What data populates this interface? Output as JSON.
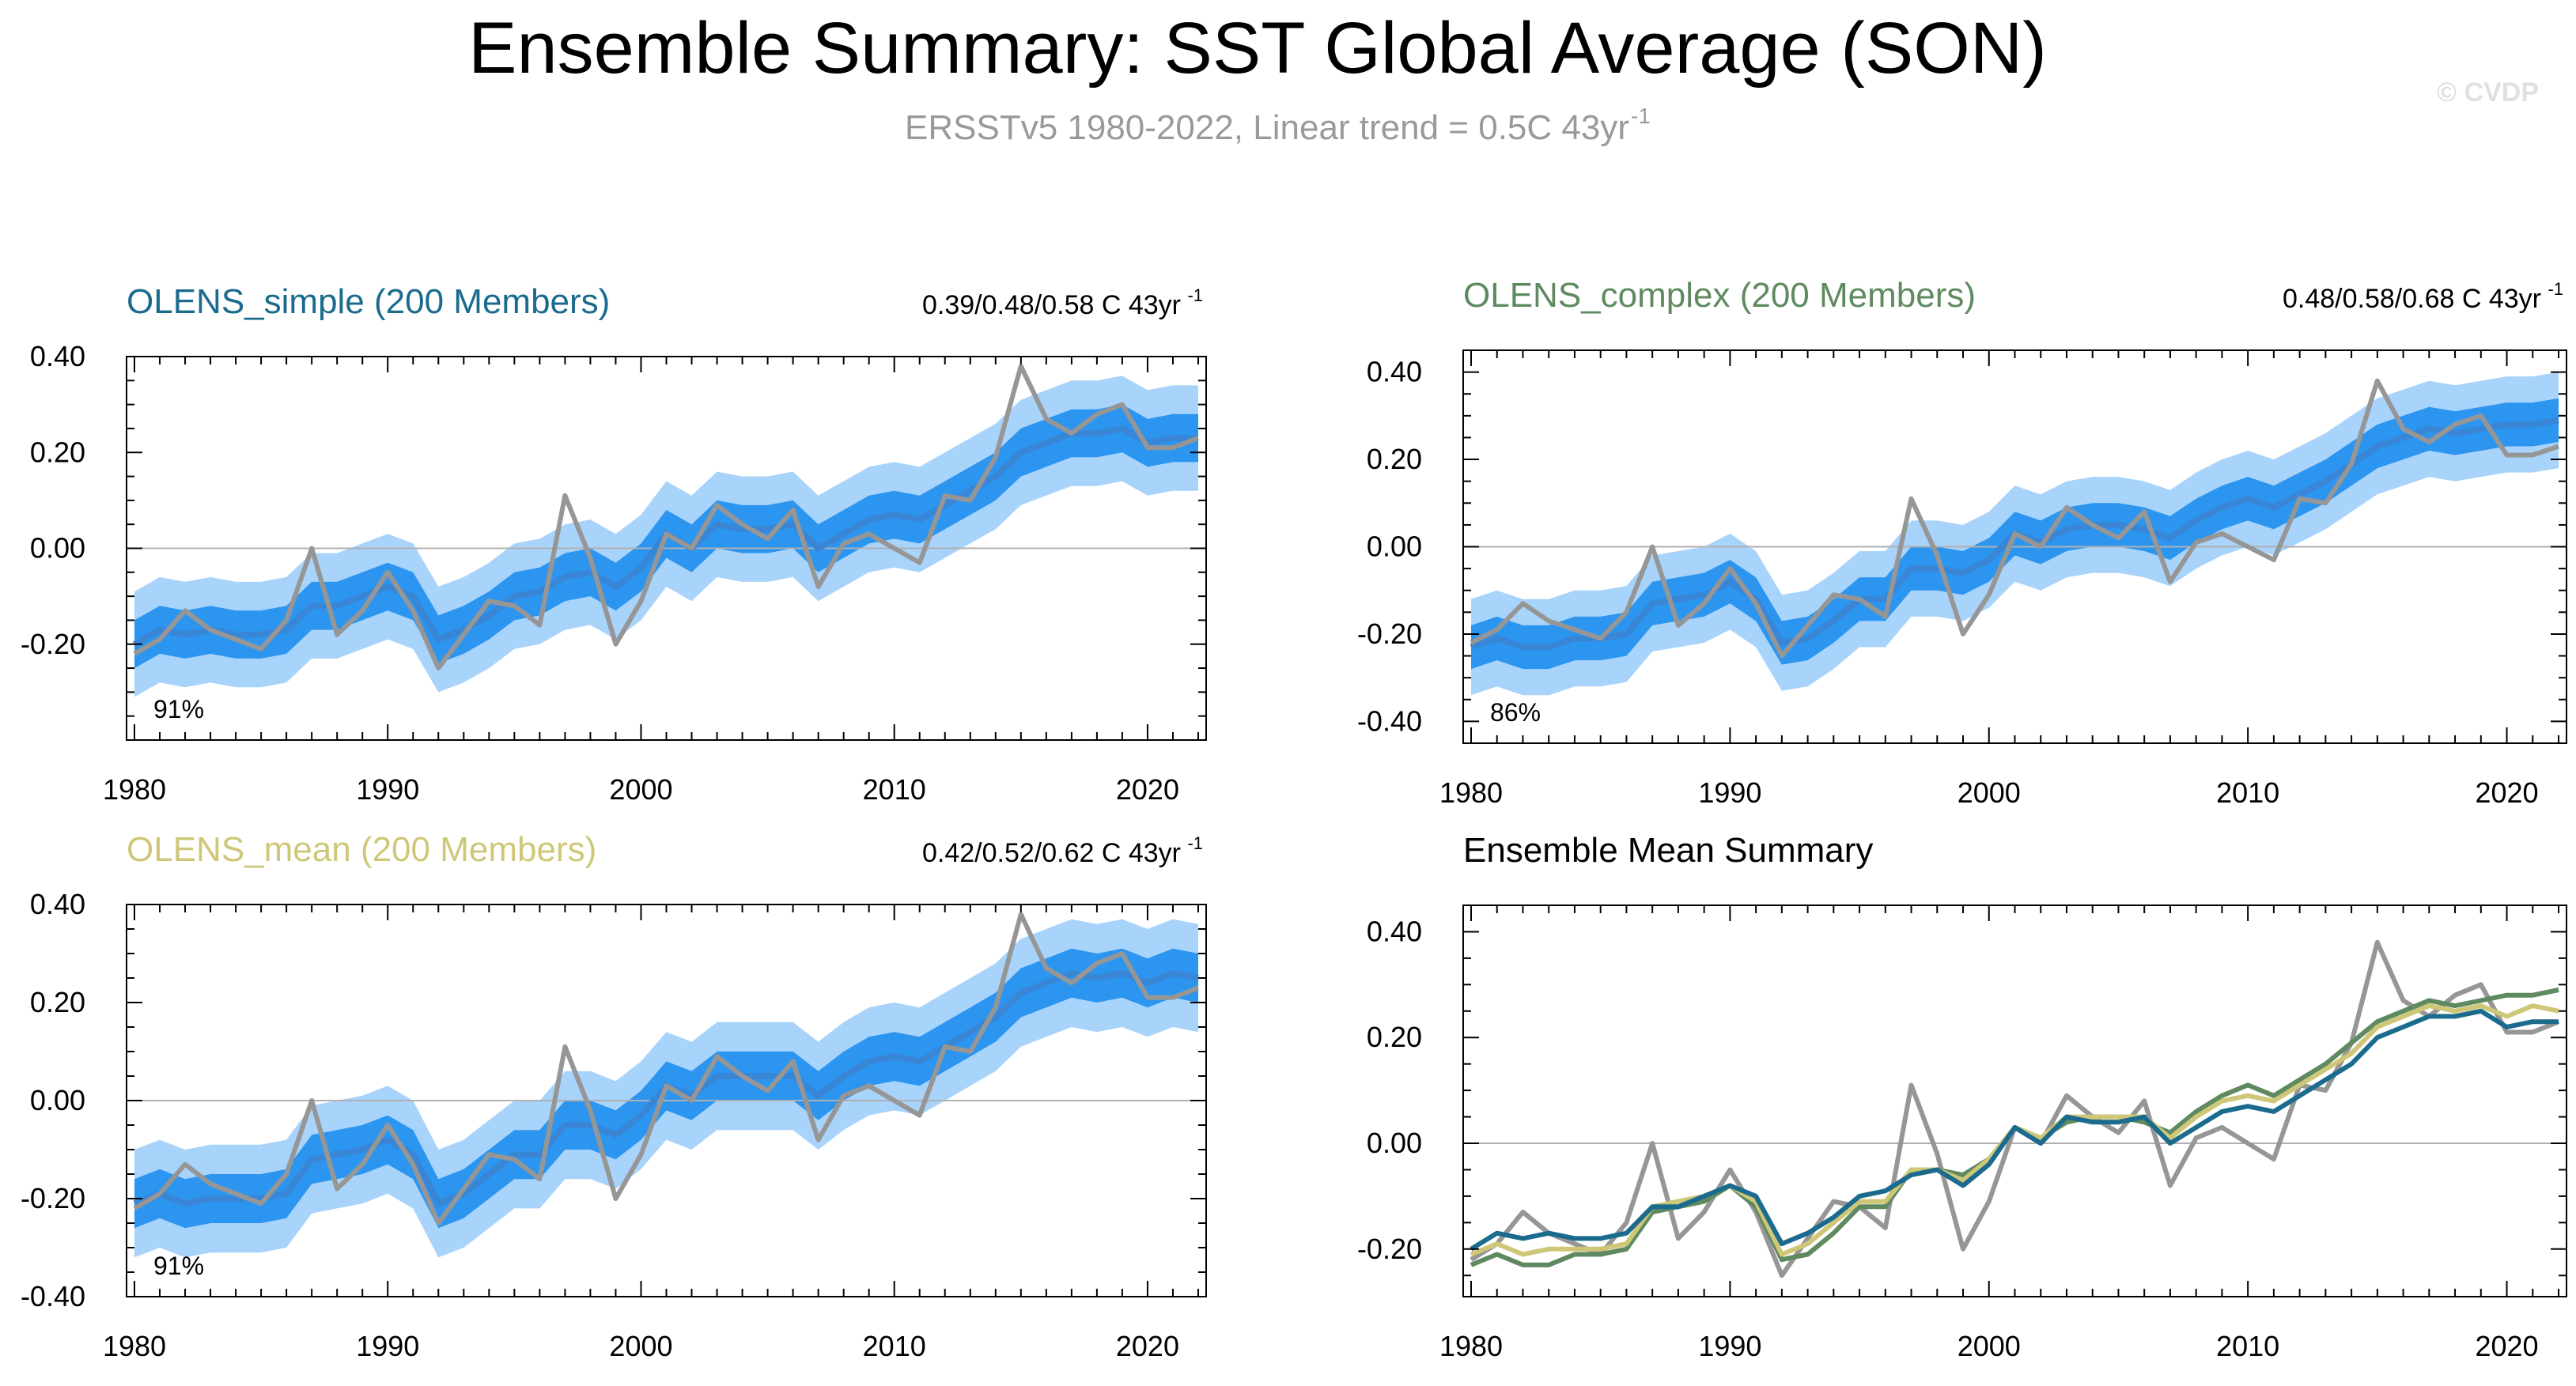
{
  "page": {
    "title": "Ensemble Summary: SST Global Average (SON)",
    "subtitle": "ERSSTv5 1980-2022, Linear trend = 0.5C 43yr",
    "subtitle_sup": "-1",
    "watermark": "© CVDP"
  },
  "colors": {
    "obs": "#969696",
    "mean_line": "#3a86d6",
    "band_outer": "#a8d3fb",
    "band_inner": "#2b95f0",
    "simple": "#1a6b8e",
    "complex": "#5f8a60",
    "mean_model": "#cfc778",
    "zero_line": "#b0b0b0"
  },
  "chart_data": [
    {
      "type": "area",
      "id": "simple",
      "title": "OLENS_simple (200 Members)",
      "trend_label": "0.39/0.48/0.58 C 43yr",
      "trend_sup": "-1",
      "percent_label": "91%",
      "x": [
        1980,
        1981,
        1982,
        1983,
        1984,
        1985,
        1986,
        1987,
        1988,
        1989,
        1990,
        1991,
        1992,
        1993,
        1994,
        1995,
        1996,
        1997,
        1998,
        1999,
        2000,
        2001,
        2002,
        2003,
        2004,
        2005,
        2006,
        2007,
        2008,
        2009,
        2010,
        2011,
        2012,
        2013,
        2014,
        2015,
        2016,
        2017,
        2018,
        2019,
        2020,
        2021,
        2022
      ],
      "mean": [
        -0.2,
        -0.17,
        -0.18,
        -0.17,
        -0.18,
        -0.18,
        -0.17,
        -0.12,
        -0.12,
        -0.1,
        -0.08,
        -0.1,
        -0.19,
        -0.17,
        -0.14,
        -0.1,
        -0.09,
        -0.06,
        -0.05,
        -0.08,
        -0.04,
        0.03,
        0.0,
        0.05,
        0.04,
        0.04,
        0.05,
        0.0,
        0.03,
        0.06,
        0.07,
        0.06,
        0.09,
        0.12,
        0.15,
        0.2,
        0.22,
        0.24,
        0.24,
        0.25,
        0.22,
        0.23,
        0.23
      ],
      "inner_lower": [
        -0.25,
        -0.22,
        -0.23,
        -0.22,
        -0.23,
        -0.23,
        -0.22,
        -0.17,
        -0.17,
        -0.15,
        -0.13,
        -0.15,
        -0.24,
        -0.22,
        -0.19,
        -0.15,
        -0.14,
        -0.11,
        -0.1,
        -0.13,
        -0.09,
        -0.02,
        -0.05,
        0.0,
        -0.01,
        -0.01,
        0.0,
        -0.05,
        -0.02,
        0.01,
        0.02,
        0.01,
        0.04,
        0.07,
        0.1,
        0.15,
        0.17,
        0.19,
        0.19,
        0.2,
        0.17,
        0.18,
        0.18
      ],
      "inner_upper": [
        -0.15,
        -0.12,
        -0.13,
        -0.12,
        -0.13,
        -0.13,
        -0.12,
        -0.07,
        -0.07,
        -0.05,
        -0.03,
        -0.05,
        -0.14,
        -0.12,
        -0.09,
        -0.05,
        -0.04,
        -0.01,
        0.0,
        -0.03,
        0.01,
        0.08,
        0.05,
        0.1,
        0.09,
        0.09,
        0.1,
        0.05,
        0.08,
        0.11,
        0.12,
        0.11,
        0.14,
        0.17,
        0.2,
        0.25,
        0.27,
        0.29,
        0.29,
        0.3,
        0.27,
        0.28,
        0.28
      ],
      "outer_lower": [
        -0.31,
        -0.28,
        -0.29,
        -0.28,
        -0.29,
        -0.29,
        -0.28,
        -0.23,
        -0.23,
        -0.21,
        -0.19,
        -0.21,
        -0.3,
        -0.28,
        -0.25,
        -0.21,
        -0.2,
        -0.17,
        -0.16,
        -0.19,
        -0.15,
        -0.08,
        -0.11,
        -0.06,
        -0.07,
        -0.07,
        -0.06,
        -0.11,
        -0.08,
        -0.05,
        -0.04,
        -0.05,
        -0.02,
        0.01,
        0.04,
        0.09,
        0.11,
        0.13,
        0.13,
        0.14,
        0.11,
        0.12,
        0.12
      ],
      "outer_upper": [
        -0.09,
        -0.06,
        -0.07,
        -0.06,
        -0.07,
        -0.07,
        -0.06,
        -0.01,
        -0.01,
        0.01,
        0.03,
        0.01,
        -0.08,
        -0.06,
        -0.03,
        0.01,
        0.02,
        0.05,
        0.06,
        0.03,
        0.07,
        0.14,
        0.11,
        0.16,
        0.15,
        0.15,
        0.16,
        0.11,
        0.14,
        0.17,
        0.18,
        0.17,
        0.2,
        0.23,
        0.26,
        0.31,
        0.33,
        0.35,
        0.35,
        0.36,
        0.33,
        0.34,
        0.34
      ],
      "obs": [
        -0.22,
        -0.19,
        -0.13,
        -0.17,
        -0.19,
        -0.21,
        -0.15,
        0.0,
        -0.18,
        -0.13,
        -0.05,
        -0.13,
        -0.25,
        -0.18,
        -0.11,
        -0.12,
        -0.16,
        0.11,
        -0.02,
        -0.2,
        -0.11,
        0.03,
        0.0,
        0.09,
        0.05,
        0.02,
        0.08,
        -0.08,
        0.01,
        0.03,
        0.0,
        -0.03,
        0.11,
        0.1,
        0.19,
        0.38,
        0.27,
        0.24,
        0.28,
        0.3,
        0.21,
        0.21,
        0.23
      ],
      "xlim": [
        1980,
        2022
      ],
      "ylim": [
        -0.4,
        0.4
      ],
      "yticks": [
        -0.2,
        0.0,
        0.2,
        0.4
      ],
      "xticks": [
        1980,
        1990,
        2000,
        2010,
        2020
      ]
    },
    {
      "type": "area",
      "id": "complex",
      "title": "OLENS_complex (200 Members)",
      "trend_label": "0.48/0.58/0.68 C 43yr",
      "trend_sup": "-1",
      "percent_label": "86%",
      "x": [
        1980,
        1981,
        1982,
        1983,
        1984,
        1985,
        1986,
        1987,
        1988,
        1989,
        1990,
        1991,
        1992,
        1993,
        1994,
        1995,
        1996,
        1997,
        1998,
        1999,
        2000,
        2001,
        2002,
        2003,
        2004,
        2005,
        2006,
        2007,
        2008,
        2009,
        2010,
        2011,
        2012,
        2013,
        2014,
        2015,
        2016,
        2017,
        2018,
        2019,
        2020,
        2021,
        2022
      ],
      "mean": [
        -0.23,
        -0.21,
        -0.23,
        -0.23,
        -0.21,
        -0.21,
        -0.2,
        -0.13,
        -0.12,
        -0.11,
        -0.08,
        -0.12,
        -0.22,
        -0.21,
        -0.17,
        -0.12,
        -0.12,
        -0.05,
        -0.05,
        -0.06,
        -0.03,
        0.03,
        0.01,
        0.04,
        0.05,
        0.05,
        0.04,
        0.02,
        0.06,
        0.09,
        0.11,
        0.09,
        0.12,
        0.15,
        0.19,
        0.23,
        0.25,
        0.27,
        0.26,
        0.27,
        0.28,
        0.28,
        0.29
      ],
      "inner_lower": [
        -0.28,
        -0.26,
        -0.28,
        -0.28,
        -0.26,
        -0.26,
        -0.25,
        -0.18,
        -0.17,
        -0.16,
        -0.13,
        -0.17,
        -0.27,
        -0.26,
        -0.22,
        -0.17,
        -0.17,
        -0.1,
        -0.1,
        -0.11,
        -0.08,
        -0.02,
        -0.04,
        -0.01,
        0.0,
        0.0,
        -0.01,
        -0.03,
        0.01,
        0.04,
        0.06,
        0.04,
        0.07,
        0.1,
        0.14,
        0.18,
        0.2,
        0.22,
        0.21,
        0.22,
        0.23,
        0.23,
        0.24
      ],
      "inner_upper": [
        -0.18,
        -0.16,
        -0.18,
        -0.18,
        -0.16,
        -0.16,
        -0.15,
        -0.08,
        -0.07,
        -0.06,
        -0.03,
        -0.07,
        -0.17,
        -0.16,
        -0.12,
        -0.07,
        -0.07,
        0.0,
        0.0,
        -0.01,
        0.02,
        0.08,
        0.06,
        0.09,
        0.1,
        0.1,
        0.09,
        0.07,
        0.11,
        0.14,
        0.16,
        0.14,
        0.17,
        0.2,
        0.24,
        0.28,
        0.3,
        0.32,
        0.31,
        0.32,
        0.33,
        0.33,
        0.34
      ],
      "outer_lower": [
        -0.34,
        -0.32,
        -0.34,
        -0.34,
        -0.32,
        -0.32,
        -0.31,
        -0.24,
        -0.23,
        -0.22,
        -0.19,
        -0.23,
        -0.33,
        -0.32,
        -0.28,
        -0.23,
        -0.23,
        -0.16,
        -0.16,
        -0.17,
        -0.14,
        -0.08,
        -0.1,
        -0.07,
        -0.06,
        -0.06,
        -0.07,
        -0.09,
        -0.05,
        -0.02,
        0.0,
        -0.02,
        0.01,
        0.04,
        0.08,
        0.12,
        0.14,
        0.16,
        0.15,
        0.16,
        0.17,
        0.17,
        0.18
      ],
      "outer_upper": [
        -0.12,
        -0.1,
        -0.12,
        -0.12,
        -0.1,
        -0.1,
        -0.09,
        -0.02,
        -0.01,
        0.0,
        0.03,
        -0.01,
        -0.11,
        -0.1,
        -0.06,
        -0.01,
        -0.01,
        0.06,
        0.06,
        0.05,
        0.08,
        0.14,
        0.12,
        0.15,
        0.16,
        0.16,
        0.15,
        0.13,
        0.17,
        0.2,
        0.22,
        0.2,
        0.23,
        0.26,
        0.3,
        0.34,
        0.36,
        0.38,
        0.37,
        0.38,
        0.39,
        0.39,
        0.4
      ],
      "obs": [
        -0.22,
        -0.19,
        -0.13,
        -0.17,
        -0.19,
        -0.21,
        -0.15,
        0.0,
        -0.18,
        -0.13,
        -0.05,
        -0.13,
        -0.25,
        -0.18,
        -0.11,
        -0.12,
        -0.16,
        0.11,
        -0.02,
        -0.2,
        -0.11,
        0.03,
        0.0,
        0.09,
        0.05,
        0.02,
        0.08,
        -0.08,
        0.01,
        0.03,
        0.0,
        -0.03,
        0.11,
        0.1,
        0.19,
        0.38,
        0.27,
        0.24,
        0.28,
        0.3,
        0.21,
        0.21,
        0.23
      ],
      "xlim": [
        1980,
        2022
      ],
      "ylim": [
        -0.45,
        0.45
      ],
      "yticks": [
        -0.4,
        -0.2,
        0.0,
        0.2,
        0.4
      ],
      "xticks": [
        1980,
        1990,
        2000,
        2010,
        2020
      ]
    },
    {
      "type": "area",
      "id": "mean",
      "title": "OLENS_mean (200 Members)",
      "trend_label": "0.42/0.52/0.62 C 43yr",
      "trend_sup": "-1",
      "percent_label": "91%",
      "x": [
        1980,
        1981,
        1982,
        1983,
        1984,
        1985,
        1986,
        1987,
        1988,
        1989,
        1990,
        1991,
        1992,
        1993,
        1994,
        1995,
        1996,
        1997,
        1998,
        1999,
        2000,
        2001,
        2002,
        2003,
        2004,
        2005,
        2006,
        2007,
        2008,
        2009,
        2010,
        2011,
        2012,
        2013,
        2014,
        2015,
        2016,
        2017,
        2018,
        2019,
        2020,
        2021,
        2022
      ],
      "mean": [
        -0.21,
        -0.19,
        -0.21,
        -0.2,
        -0.2,
        -0.2,
        -0.19,
        -0.12,
        -0.11,
        -0.1,
        -0.08,
        -0.11,
        -0.21,
        -0.19,
        -0.15,
        -0.11,
        -0.11,
        -0.05,
        -0.05,
        -0.07,
        -0.03,
        0.03,
        0.01,
        0.05,
        0.05,
        0.05,
        0.05,
        0.01,
        0.05,
        0.08,
        0.09,
        0.08,
        0.11,
        0.14,
        0.17,
        0.22,
        0.24,
        0.26,
        0.25,
        0.26,
        0.24,
        0.26,
        0.25
      ],
      "inner_lower": [
        -0.26,
        -0.24,
        -0.26,
        -0.25,
        -0.25,
        -0.25,
        -0.24,
        -0.17,
        -0.16,
        -0.15,
        -0.13,
        -0.16,
        -0.26,
        -0.24,
        -0.2,
        -0.16,
        -0.16,
        -0.1,
        -0.1,
        -0.12,
        -0.08,
        -0.02,
        -0.04,
        0.0,
        0.0,
        0.0,
        0.0,
        -0.04,
        0.0,
        0.03,
        0.04,
        0.03,
        0.06,
        0.09,
        0.12,
        0.17,
        0.19,
        0.21,
        0.2,
        0.21,
        0.19,
        0.21,
        0.2
      ],
      "inner_upper": [
        -0.16,
        -0.14,
        -0.16,
        -0.15,
        -0.15,
        -0.15,
        -0.14,
        -0.07,
        -0.06,
        -0.05,
        -0.03,
        -0.06,
        -0.16,
        -0.14,
        -0.1,
        -0.06,
        -0.06,
        0.0,
        0.0,
        -0.02,
        0.02,
        0.08,
        0.06,
        0.1,
        0.1,
        0.1,
        0.1,
        0.06,
        0.1,
        0.13,
        0.14,
        0.13,
        0.16,
        0.19,
        0.22,
        0.27,
        0.29,
        0.31,
        0.3,
        0.31,
        0.29,
        0.31,
        0.3
      ],
      "outer_lower": [
        -0.32,
        -0.3,
        -0.32,
        -0.31,
        -0.31,
        -0.31,
        -0.3,
        -0.23,
        -0.22,
        -0.21,
        -0.19,
        -0.22,
        -0.32,
        -0.3,
        -0.26,
        -0.22,
        -0.22,
        -0.16,
        -0.16,
        -0.18,
        -0.14,
        -0.08,
        -0.1,
        -0.06,
        -0.06,
        -0.06,
        -0.06,
        -0.1,
        -0.06,
        -0.03,
        -0.02,
        -0.03,
        0.0,
        0.03,
        0.06,
        0.11,
        0.13,
        0.15,
        0.14,
        0.15,
        0.13,
        0.15,
        0.14
      ],
      "outer_upper": [
        -0.1,
        -0.08,
        -0.1,
        -0.09,
        -0.09,
        -0.09,
        -0.08,
        -0.01,
        0.0,
        0.01,
        0.03,
        0.0,
        -0.1,
        -0.08,
        -0.04,
        0.0,
        0.0,
        0.06,
        0.06,
        0.04,
        0.08,
        0.14,
        0.12,
        0.16,
        0.16,
        0.16,
        0.16,
        0.12,
        0.16,
        0.19,
        0.2,
        0.19,
        0.22,
        0.25,
        0.28,
        0.33,
        0.35,
        0.37,
        0.36,
        0.37,
        0.35,
        0.37,
        0.36
      ],
      "obs": [
        -0.22,
        -0.19,
        -0.13,
        -0.17,
        -0.19,
        -0.21,
        -0.15,
        0.0,
        -0.18,
        -0.13,
        -0.05,
        -0.13,
        -0.25,
        -0.18,
        -0.11,
        -0.12,
        -0.16,
        0.11,
        -0.02,
        -0.2,
        -0.11,
        0.03,
        0.0,
        0.09,
        0.05,
        0.02,
        0.08,
        -0.08,
        0.01,
        0.03,
        0.0,
        -0.03,
        0.11,
        0.1,
        0.19,
        0.38,
        0.27,
        0.24,
        0.28,
        0.3,
        0.21,
        0.21,
        0.23
      ],
      "xlim": [
        1980,
        2022
      ],
      "ylim": [
        -0.4,
        0.4
      ],
      "yticks": [
        -0.4,
        -0.2,
        0.0,
        0.2,
        0.4
      ],
      "xticks": [
        1980,
        1990,
        2000,
        2010,
        2020
      ]
    },
    {
      "type": "line",
      "id": "summary",
      "title": "Ensemble Mean Summary",
      "x": [
        1980,
        1981,
        1982,
        1983,
        1984,
        1985,
        1986,
        1987,
        1988,
        1989,
        1990,
        1991,
        1992,
        1993,
        1994,
        1995,
        1996,
        1997,
        1998,
        1999,
        2000,
        2001,
        2002,
        2003,
        2004,
        2005,
        2006,
        2007,
        2008,
        2009,
        2010,
        2011,
        2012,
        2013,
        2014,
        2015,
        2016,
        2017,
        2018,
        2019,
        2020,
        2021,
        2022
      ],
      "series": [
        {
          "color_key": "obs",
          "values": [
            -0.22,
            -0.19,
            -0.13,
            -0.17,
            -0.19,
            -0.21,
            -0.15,
            0.0,
            -0.18,
            -0.13,
            -0.05,
            -0.13,
            -0.25,
            -0.18,
            -0.11,
            -0.12,
            -0.16,
            0.11,
            -0.02,
            -0.2,
            -0.11,
            0.03,
            0.0,
            0.09,
            0.05,
            0.02,
            0.08,
            -0.08,
            0.01,
            0.03,
            0.0,
            -0.03,
            0.11,
            0.1,
            0.19,
            0.38,
            0.27,
            0.24,
            0.28,
            0.3,
            0.21,
            0.21,
            0.23
          ]
        },
        {
          "color_key": "complex",
          "values": [
            -0.23,
            -0.21,
            -0.23,
            -0.23,
            -0.21,
            -0.21,
            -0.2,
            -0.13,
            -0.12,
            -0.11,
            -0.08,
            -0.12,
            -0.22,
            -0.21,
            -0.17,
            -0.12,
            -0.12,
            -0.05,
            -0.05,
            -0.06,
            -0.03,
            0.03,
            0.01,
            0.04,
            0.05,
            0.05,
            0.04,
            0.02,
            0.06,
            0.09,
            0.11,
            0.09,
            0.12,
            0.15,
            0.19,
            0.23,
            0.25,
            0.27,
            0.26,
            0.27,
            0.28,
            0.28,
            0.29
          ]
        },
        {
          "color_key": "mean_model",
          "values": [
            -0.21,
            -0.19,
            -0.21,
            -0.2,
            -0.2,
            -0.2,
            -0.19,
            -0.12,
            -0.11,
            -0.1,
            -0.08,
            -0.11,
            -0.21,
            -0.19,
            -0.15,
            -0.11,
            -0.11,
            -0.05,
            -0.05,
            -0.07,
            -0.03,
            0.03,
            0.01,
            0.05,
            0.05,
            0.05,
            0.05,
            0.01,
            0.05,
            0.08,
            0.09,
            0.08,
            0.11,
            0.14,
            0.17,
            0.22,
            0.24,
            0.26,
            0.25,
            0.26,
            0.24,
            0.26,
            0.25
          ]
        },
        {
          "color_key": "simple",
          "values": [
            -0.2,
            -0.17,
            -0.18,
            -0.17,
            -0.18,
            -0.18,
            -0.17,
            -0.12,
            -0.12,
            -0.1,
            -0.08,
            -0.1,
            -0.19,
            -0.17,
            -0.14,
            -0.1,
            -0.09,
            -0.06,
            -0.05,
            -0.08,
            -0.04,
            0.03,
            0.0,
            0.05,
            0.04,
            0.04,
            0.05,
            0.0,
            0.03,
            0.06,
            0.07,
            0.06,
            0.09,
            0.12,
            0.15,
            0.2,
            0.22,
            0.24,
            0.24,
            0.25,
            0.22,
            0.23,
            0.23
          ]
        }
      ],
      "xlim": [
        1980,
        2022
      ],
      "ylim": [
        -0.29,
        0.45
      ],
      "yticks": [
        -0.2,
        0.0,
        0.2,
        0.4
      ],
      "xticks": [
        1980,
        1990,
        2000,
        2010,
        2020
      ]
    }
  ]
}
